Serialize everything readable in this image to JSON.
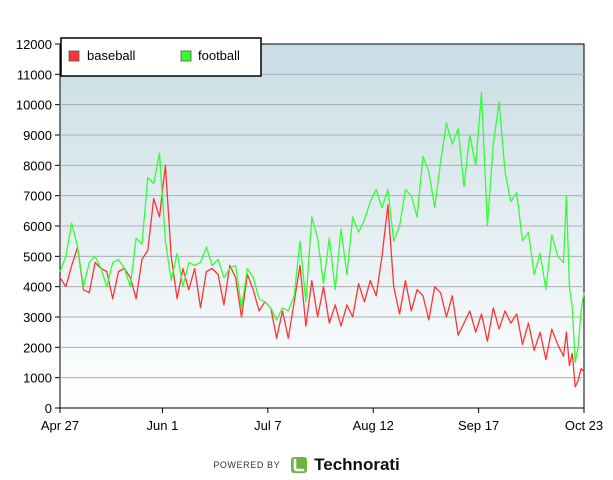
{
  "chart_data": {
    "type": "line",
    "title": "",
    "xlabel": "",
    "ylabel": "",
    "ylim": [
      0,
      12000
    ],
    "yticks": [
      0,
      1000,
      2000,
      3000,
      4000,
      5000,
      6000,
      7000,
      8000,
      9000,
      10000,
      11000,
      12000
    ],
    "xlim": [
      "2007-04-27",
      "2007-10-23"
    ],
    "xticks": [
      {
        "date": "2007-04-27",
        "label": "Apr 27"
      },
      {
        "date": "2007-06-01",
        "label": "Jun 1"
      },
      {
        "date": "2007-07-07",
        "label": "Jul 7"
      },
      {
        "date": "2007-08-12",
        "label": "Aug 12"
      },
      {
        "date": "2007-09-17",
        "label": "Sep 17"
      },
      {
        "date": "2007-10-23",
        "label": "Oct 23"
      }
    ],
    "grid": true,
    "legend_position": "top-left",
    "series": [
      {
        "name": "baseball",
        "color": "#ff3333",
        "points": [
          [
            "2007-04-27",
            4300
          ],
          [
            "2007-04-29",
            4000
          ],
          [
            "2007-05-01",
            4700
          ],
          [
            "2007-05-03",
            5300
          ],
          [
            "2007-05-05",
            3900
          ],
          [
            "2007-05-07",
            3800
          ],
          [
            "2007-05-09",
            4800
          ],
          [
            "2007-05-11",
            4600
          ],
          [
            "2007-05-13",
            4500
          ],
          [
            "2007-05-15",
            3600
          ],
          [
            "2007-05-17",
            4500
          ],
          [
            "2007-05-19",
            4600
          ],
          [
            "2007-05-21",
            4300
          ],
          [
            "2007-05-23",
            3600
          ],
          [
            "2007-05-25",
            4900
          ],
          [
            "2007-05-27",
            5200
          ],
          [
            "2007-05-29",
            6900
          ],
          [
            "2007-05-31",
            6300
          ],
          [
            "2007-06-02",
            8000
          ],
          [
            "2007-06-04",
            5000
          ],
          [
            "2007-06-06",
            3600
          ],
          [
            "2007-06-08",
            4600
          ],
          [
            "2007-06-10",
            3900
          ],
          [
            "2007-06-12",
            4600
          ],
          [
            "2007-06-14",
            3300
          ],
          [
            "2007-06-16",
            4500
          ],
          [
            "2007-06-18",
            4600
          ],
          [
            "2007-06-20",
            4400
          ],
          [
            "2007-06-22",
            3400
          ],
          [
            "2007-06-24",
            4700
          ],
          [
            "2007-06-26",
            4300
          ],
          [
            "2007-06-28",
            3000
          ],
          [
            "2007-06-30",
            4400
          ],
          [
            "2007-07-02",
            3900
          ],
          [
            "2007-07-04",
            3200
          ],
          [
            "2007-07-06",
            3500
          ],
          [
            "2007-07-08",
            3300
          ],
          [
            "2007-07-10",
            2300
          ],
          [
            "2007-07-12",
            3200
          ],
          [
            "2007-07-14",
            2300
          ],
          [
            "2007-07-16",
            3500
          ],
          [
            "2007-07-18",
            4700
          ],
          [
            "2007-07-20",
            2700
          ],
          [
            "2007-07-22",
            4200
          ],
          [
            "2007-07-24",
            3000
          ],
          [
            "2007-07-26",
            4000
          ],
          [
            "2007-07-28",
            2800
          ],
          [
            "2007-07-30",
            3400
          ],
          [
            "2007-08-01",
            2700
          ],
          [
            "2007-08-03",
            3400
          ],
          [
            "2007-08-05",
            3000
          ],
          [
            "2007-08-07",
            4100
          ],
          [
            "2007-08-09",
            3500
          ],
          [
            "2007-08-11",
            4200
          ],
          [
            "2007-08-13",
            3700
          ],
          [
            "2007-08-15",
            5000
          ],
          [
            "2007-08-17",
            6700
          ],
          [
            "2007-08-19",
            4000
          ],
          [
            "2007-08-21",
            3100
          ],
          [
            "2007-08-23",
            4200
          ],
          [
            "2007-08-25",
            3200
          ],
          [
            "2007-08-27",
            3900
          ],
          [
            "2007-08-29",
            3700
          ],
          [
            "2007-08-31",
            2900
          ],
          [
            "2007-09-02",
            4000
          ],
          [
            "2007-09-04",
            3800
          ],
          [
            "2007-09-06",
            3000
          ],
          [
            "2007-09-08",
            3700
          ],
          [
            "2007-09-10",
            2400
          ],
          [
            "2007-09-12",
            2800
          ],
          [
            "2007-09-14",
            3200
          ],
          [
            "2007-09-16",
            2500
          ],
          [
            "2007-09-18",
            3100
          ],
          [
            "2007-09-20",
            2200
          ],
          [
            "2007-09-22",
            3300
          ],
          [
            "2007-09-24",
            2600
          ],
          [
            "2007-09-26",
            3200
          ],
          [
            "2007-09-28",
            2800
          ],
          [
            "2007-09-30",
            3100
          ],
          [
            "2007-10-02",
            2100
          ],
          [
            "2007-10-04",
            2800
          ],
          [
            "2007-10-06",
            1900
          ],
          [
            "2007-10-08",
            2500
          ],
          [
            "2007-10-10",
            1600
          ],
          [
            "2007-10-12",
            2600
          ],
          [
            "2007-10-14",
            2100
          ],
          [
            "2007-10-16",
            1700
          ],
          [
            "2007-10-17",
            2500
          ],
          [
            "2007-10-18",
            1400
          ],
          [
            "2007-10-19",
            1800
          ],
          [
            "2007-10-20",
            700
          ],
          [
            "2007-10-21",
            900
          ],
          [
            "2007-10-22",
            1300
          ],
          [
            "2007-10-23",
            1200
          ]
        ]
      },
      {
        "name": "football",
        "color": "#33ff33",
        "points": [
          [
            "2007-04-27",
            4500
          ],
          [
            "2007-04-29",
            5000
          ],
          [
            "2007-05-01",
            6100
          ],
          [
            "2007-05-03",
            5300
          ],
          [
            "2007-05-05",
            4000
          ],
          [
            "2007-05-07",
            4800
          ],
          [
            "2007-05-09",
            5000
          ],
          [
            "2007-05-11",
            4600
          ],
          [
            "2007-05-13",
            4000
          ],
          [
            "2007-05-15",
            4800
          ],
          [
            "2007-05-17",
            4900
          ],
          [
            "2007-05-19",
            4600
          ],
          [
            "2007-05-21",
            4000
          ],
          [
            "2007-05-23",
            5600
          ],
          [
            "2007-05-25",
            5400
          ],
          [
            "2007-05-27",
            7600
          ],
          [
            "2007-05-29",
            7400
          ],
          [
            "2007-05-31",
            8400
          ],
          [
            "2007-06-02",
            5500
          ],
          [
            "2007-06-04",
            4200
          ],
          [
            "2007-06-06",
            5100
          ],
          [
            "2007-06-08",
            4000
          ],
          [
            "2007-06-10",
            4800
          ],
          [
            "2007-06-12",
            4700
          ],
          [
            "2007-06-14",
            4800
          ],
          [
            "2007-06-16",
            5300
          ],
          [
            "2007-06-18",
            4700
          ],
          [
            "2007-06-20",
            4900
          ],
          [
            "2007-06-22",
            4300
          ],
          [
            "2007-06-24",
            4600
          ],
          [
            "2007-06-26",
            4700
          ],
          [
            "2007-06-28",
            3300
          ],
          [
            "2007-06-30",
            4600
          ],
          [
            "2007-07-02",
            4300
          ],
          [
            "2007-07-04",
            3600
          ],
          [
            "2007-07-06",
            3500
          ],
          [
            "2007-07-08",
            3300
          ],
          [
            "2007-07-10",
            2900
          ],
          [
            "2007-07-12",
            3300
          ],
          [
            "2007-07-14",
            3200
          ],
          [
            "2007-07-16",
            3700
          ],
          [
            "2007-07-18",
            5500
          ],
          [
            "2007-07-20",
            3500
          ],
          [
            "2007-07-22",
            6300
          ],
          [
            "2007-07-24",
            5600
          ],
          [
            "2007-07-26",
            4100
          ],
          [
            "2007-07-28",
            5600
          ],
          [
            "2007-07-30",
            3900
          ],
          [
            "2007-08-01",
            5900
          ],
          [
            "2007-08-03",
            4400
          ],
          [
            "2007-08-05",
            6300
          ],
          [
            "2007-08-07",
            5800
          ],
          [
            "2007-08-09",
            6200
          ],
          [
            "2007-08-11",
            6800
          ],
          [
            "2007-08-13",
            7200
          ],
          [
            "2007-08-15",
            6600
          ],
          [
            "2007-08-17",
            7200
          ],
          [
            "2007-08-19",
            5500
          ],
          [
            "2007-08-21",
            6000
          ],
          [
            "2007-08-23",
            7200
          ],
          [
            "2007-08-25",
            7000
          ],
          [
            "2007-08-27",
            6300
          ],
          [
            "2007-08-29",
            8300
          ],
          [
            "2007-08-31",
            7800
          ],
          [
            "2007-09-02",
            6600
          ],
          [
            "2007-09-04",
            8100
          ],
          [
            "2007-09-06",
            9400
          ],
          [
            "2007-09-08",
            8700
          ],
          [
            "2007-09-10",
            9200
          ],
          [
            "2007-09-12",
            7300
          ],
          [
            "2007-09-14",
            9000
          ],
          [
            "2007-09-16",
            8000
          ],
          [
            "2007-09-18",
            10400
          ],
          [
            "2007-09-20",
            6000
          ],
          [
            "2007-09-22",
            8700
          ],
          [
            "2007-09-24",
            10100
          ],
          [
            "2007-09-26",
            7800
          ],
          [
            "2007-09-28",
            6800
          ],
          [
            "2007-09-30",
            7100
          ],
          [
            "2007-10-02",
            5500
          ],
          [
            "2007-10-04",
            5800
          ],
          [
            "2007-10-06",
            4400
          ],
          [
            "2007-10-08",
            5100
          ],
          [
            "2007-10-10",
            3900
          ],
          [
            "2007-10-12",
            5700
          ],
          [
            "2007-10-14",
            5000
          ],
          [
            "2007-10-16",
            4800
          ],
          [
            "2007-10-17",
            7000
          ],
          [
            "2007-10-18",
            4000
          ],
          [
            "2007-10-19",
            3300
          ],
          [
            "2007-10-20",
            1500
          ],
          [
            "2007-10-21",
            2000
          ],
          [
            "2007-10-22",
            3200
          ],
          [
            "2007-10-23",
            3800
          ]
        ]
      }
    ]
  },
  "footer": {
    "powered_by": "POWERED BY",
    "brand": "Technorati",
    "brand_color": "#6cb33f"
  }
}
